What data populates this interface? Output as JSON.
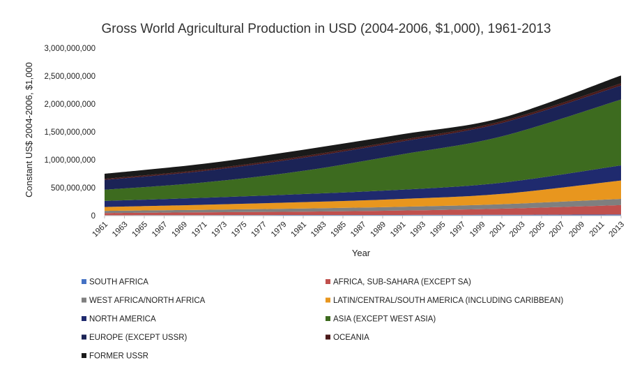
{
  "chart_data": {
    "type": "area",
    "stacked": true,
    "title": "Gross World Agricultural Production in USD (2004-2006, $1,000), 1961-2013",
    "xlabel": "Year",
    "ylabel": "Constant US$ 2004-2006, $1,000",
    "ylim": [
      0,
      3000000000
    ],
    "yticks": [
      0,
      500000000,
      1000000000,
      1500000000,
      2000000000,
      2500000000,
      3000000000
    ],
    "ytick_labels": [
      "0",
      "500,000,000",
      "1,000,000,000",
      "1,500,000,000",
      "2,000,000,000",
      "2,500,000,000",
      "3,000,000,000"
    ],
    "x_ticks": [
      "1961",
      "1963",
      "1965",
      "1967",
      "1969",
      "1971",
      "1973",
      "1975",
      "1977",
      "1979",
      "1981",
      "1983",
      "1985",
      "1987",
      "1989",
      "1991",
      "1993",
      "1995",
      "1997",
      "1999",
      "2001",
      "2003",
      "2005",
      "2007",
      "2009",
      "2011",
      "2013"
    ],
    "x": [
      1961,
      1971,
      1981,
      1991,
      2001,
      2013
    ],
    "grid": false,
    "legend_position": "bottom",
    "series": [
      {
        "name": "SOUTH AFRICA",
        "color": "#4472c4",
        "values": [
          8000000,
          10000000,
          12000000,
          13000000,
          15000000,
          20000000
        ]
      },
      {
        "name": "AFRICA, SUB-SAHARA (EXCEPT SA)",
        "color": "#c0504d",
        "values": [
          40000000,
          50000000,
          60000000,
          80000000,
          110000000,
          170000000
        ]
      },
      {
        "name": "WEST AFRICA/NORTH AFRICA",
        "color": "#7f7f7f",
        "values": [
          37000000,
          45000000,
          55000000,
          67000000,
          80000000,
          110000000
        ]
      },
      {
        "name": "LATIN/CENTRAL/SOUTH AMERICA (INCLUDING CARIBBEAN)",
        "color": "#e8961e",
        "values": [
          70000000,
          90000000,
          115000000,
          140000000,
          185000000,
          330000000
        ]
      },
      {
        "name": "NORTH AMERICA",
        "color": "#1f2a6e",
        "values": [
          110000000,
          125000000,
          145000000,
          165000000,
          200000000,
          270000000
        ]
      },
      {
        "name": "ASIA (EXCEPT WEST ASIA)",
        "color": "#3d6b1f",
        "values": [
          200000000,
          275000000,
          415000000,
          635000000,
          830000000,
          1180000000
        ]
      },
      {
        "name": "EUROPE (EXCEPT USSR)",
        "color": "#1b2356",
        "values": [
          175000000,
          205000000,
          235000000,
          230000000,
          240000000,
          250000000
        ]
      },
      {
        "name": "OCEANIA",
        "color": "#4a1a1a",
        "values": [
          20000000,
          25000000,
          28000000,
          30000000,
          32000000,
          40000000
        ]
      },
      {
        "name": "FORMER USSR",
        "color": "#1a1a1a",
        "values": [
          90000000,
          105000000,
          115000000,
          100000000,
          60000000,
          140000000
        ]
      }
    ]
  }
}
